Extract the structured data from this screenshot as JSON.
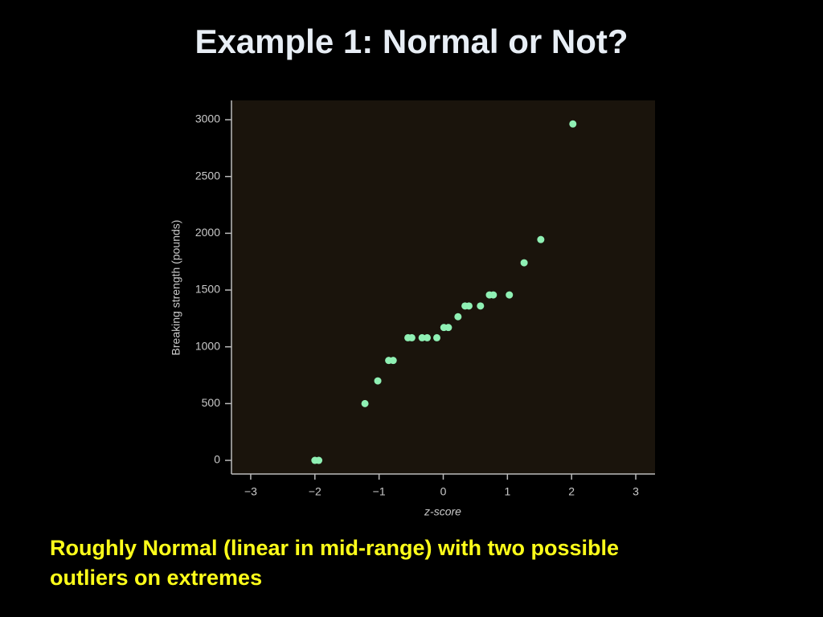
{
  "title": "Example 1:  Normal or Not?",
  "caption": [
    "Roughly Normal (linear in mid-range) with two possible",
    "outliers on extremes"
  ],
  "chart_data": {
    "type": "scatter",
    "x_label": "z-score",
    "y_label": "Breaking strength (pounds)",
    "color": "#8ff0b4",
    "x": [
      -2.0,
      -1.94,
      -1.22,
      -1.02,
      -0.85,
      -0.78,
      -0.55,
      -0.49,
      -0.33,
      -0.25,
      -0.1,
      0.01,
      0.08,
      0.23,
      0.34,
      0.4,
      0.58,
      0.72,
      0.78,
      1.03,
      1.26,
      1.52,
      2.02
    ],
    "y": [
      0,
      0,
      500,
      700,
      880,
      880,
      1080,
      1080,
      1080,
      1080,
      1080,
      1170,
      1170,
      1265,
      1360,
      1360,
      1360,
      1457,
      1457,
      1457,
      1740,
      1945,
      2963
    ],
    "xlim": [
      -3.3,
      3.3
    ],
    "ylim": [
      -120,
      3170
    ],
    "xticks": [
      {
        "value": -3,
        "label": "−3"
      },
      {
        "value": -2,
        "label": "−2"
      },
      {
        "value": -1,
        "label": "−1"
      },
      0,
      1,
      2,
      3
    ],
    "yticks": [
      0,
      500,
      1000,
      1500,
      2000,
      2500,
      3000
    ]
  }
}
